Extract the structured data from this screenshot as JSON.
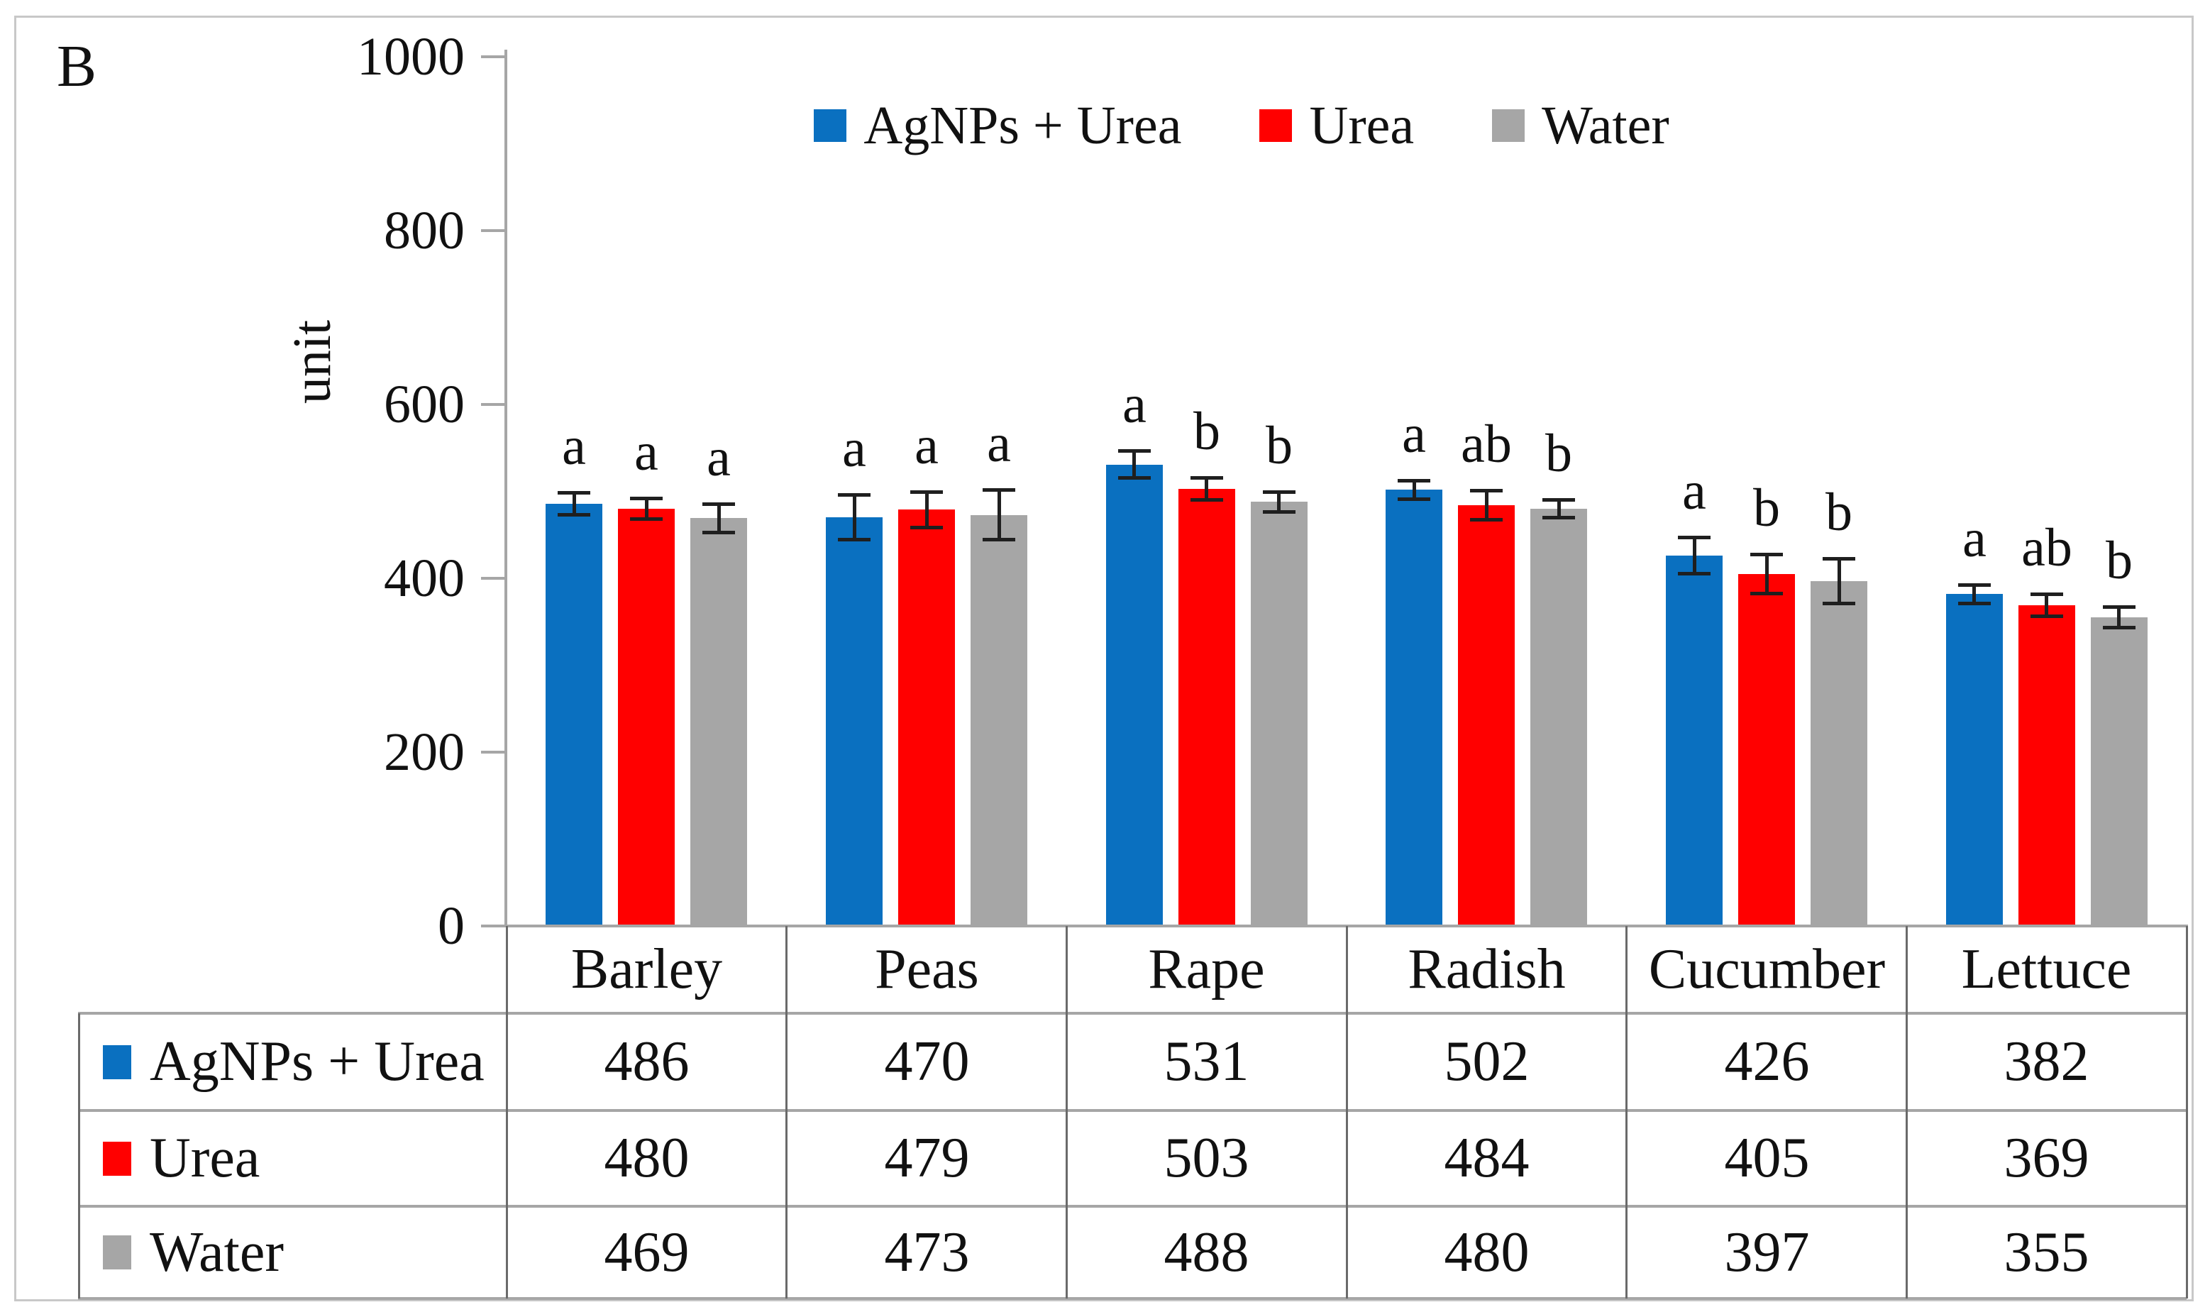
{
  "panel_label": "B",
  "axis": {
    "ylabel": "unit",
    "ytick_labels": [
      "0",
      "200",
      "400",
      "600",
      "800",
      "1000"
    ]
  },
  "legend": {
    "items": [
      "AgNPs + Urea",
      "Urea",
      "Water"
    ]
  },
  "colors": {
    "agnps_urea": "#0A70C0",
    "urea": "#FF0000",
    "water": "#A6A6A6",
    "axis_line": "#A6A6A6",
    "table_vline": "#6A6A6A",
    "table_hline": "#A6A6A6",
    "error_bar": "#1F1F1F",
    "frame": "#C8C8C8",
    "text": "#111111"
  },
  "chart_data": {
    "type": "bar",
    "title": "",
    "xlabel": "",
    "ylabel": "unit",
    "ylim": [
      0,
      1000
    ],
    "yticks": [
      0,
      200,
      400,
      600,
      800,
      1000
    ],
    "grid": false,
    "legend_position": "top-center",
    "data_table_below_axis": true,
    "categories": [
      "Barley",
      "Peas",
      "Rape",
      "Radish",
      "Cucumber",
      "Lettuce"
    ],
    "series": [
      {
        "name": "AgNPs + Urea",
        "color": "#0A70C0",
        "values": [
          486,
          470,
          531,
          502,
          426,
          382
        ],
        "errors": [
          13,
          26,
          16,
          11,
          21,
          11
        ]
      },
      {
        "name": "Urea",
        "color": "#FF0000",
        "values": [
          480,
          479,
          503,
          484,
          405,
          369
        ],
        "errors": [
          12,
          21,
          13,
          17,
          23,
          13
        ]
      },
      {
        "name": "Water",
        "color": "#A6A6A6",
        "values": [
          469,
          473,
          488,
          480,
          397,
          355
        ],
        "errors": [
          17,
          29,
          12,
          11,
          26,
          12
        ]
      }
    ],
    "significance_letters": [
      [
        "a",
        "a",
        "a"
      ],
      [
        "a",
        "a",
        "a"
      ],
      [
        "a",
        "b",
        "b"
      ],
      [
        "a",
        "ab",
        "b"
      ],
      [
        "a",
        "b",
        "b"
      ],
      [
        "a",
        "ab",
        "b"
      ]
    ]
  }
}
